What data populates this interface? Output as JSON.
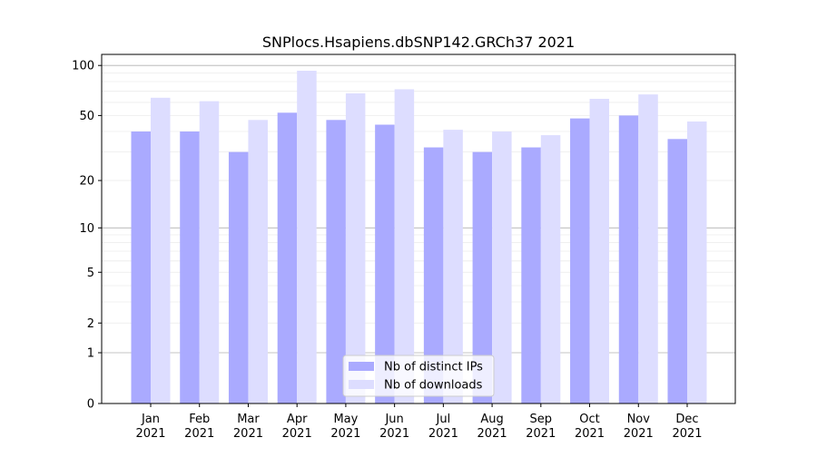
{
  "chart_data": {
    "type": "bar",
    "title": "SNPlocs.Hsapiens.dbSNP142.GRCh37 2021",
    "xlabel": "",
    "ylabel": "",
    "yscale": "log10(1+y)",
    "ylim": [
      0,
      110
    ],
    "yticks": [
      0,
      1,
      2,
      5,
      10,
      20,
      50,
      100
    ],
    "categories": [
      "Jan",
      "Feb",
      "Mar",
      "Apr",
      "May",
      "Jun",
      "Jul",
      "Aug",
      "Sep",
      "Oct",
      "Nov",
      "Dec"
    ],
    "year_label": "2021",
    "grid": true,
    "legend_position": "bottom-center",
    "series": [
      {
        "name": "Nb of distinct IPs",
        "color": "#aaaaff",
        "values": [
          40,
          40,
          30,
          52,
          47,
          44,
          32,
          30,
          32,
          48,
          50,
          36
        ]
      },
      {
        "name": "Nb of downloads",
        "color": "#ddddff",
        "values": [
          64,
          61,
          47,
          93,
          68,
          72,
          41,
          40,
          38,
          63,
          67,
          46
        ]
      }
    ]
  }
}
